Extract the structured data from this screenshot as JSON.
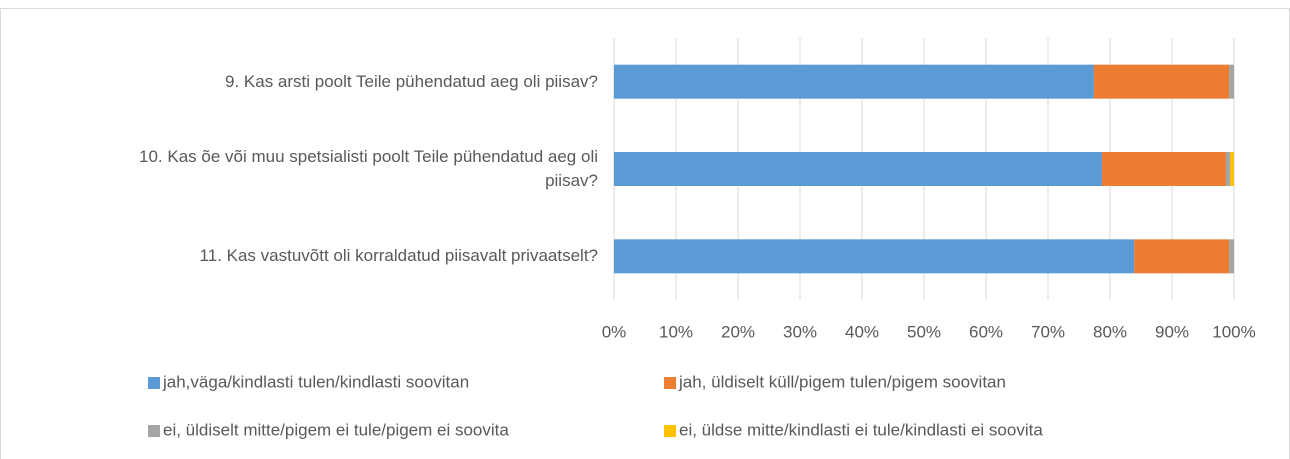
{
  "chart_data": {
    "type": "stacked_bar_horizontal",
    "categories": [
      "9. Kas arsti poolt Teile pühendatud aeg oli piisav?",
      "10. Kas õe või muu spetsialisti poolt Teile pühendatud aeg oli piisav?",
      "11. Kas vastuvõtt oli korraldatud piisavalt privaatselt?"
    ],
    "series": [
      {
        "name": "jah,väga/kindlasti tulen/kindlasti soovitan",
        "color": "#5b9bd5",
        "values": [
          77.4,
          78.7,
          83.9
        ]
      },
      {
        "name": "jah, üldiselt küll/pigem tulen/pigem soovitan",
        "color": "#ed7d31",
        "values": [
          21.8,
          20.0,
          15.3
        ]
      },
      {
        "name": "ei, üldiselt mitte/pigem ei tule/pigem ei soovita",
        "color": "#a5a5a5",
        "values": [
          0.8,
          0.7,
          0.8
        ]
      },
      {
        "name": "ei, üldse mitte/kindlasti ei tule/kindlasti ei soovita",
        "color": "#ffc000",
        "values": [
          0,
          0.6,
          0
        ]
      }
    ],
    "xlim": [
      0,
      100
    ],
    "xticks": [
      {
        "value": 0,
        "label": "0%"
      },
      {
        "value": 10,
        "label": "10%"
      },
      {
        "value": 20,
        "label": "20%"
      },
      {
        "value": 30,
        "label": "30%"
      },
      {
        "value": 40,
        "label": "40%"
      },
      {
        "value": 50,
        "label": "50%"
      },
      {
        "value": 60,
        "label": "60%"
      },
      {
        "value": 70,
        "label": "70%"
      },
      {
        "value": 80,
        "label": "80%"
      },
      {
        "value": 90,
        "label": "90%"
      },
      {
        "value": 100,
        "label": "100%"
      }
    ],
    "grid": true,
    "legend": "bottom"
  }
}
